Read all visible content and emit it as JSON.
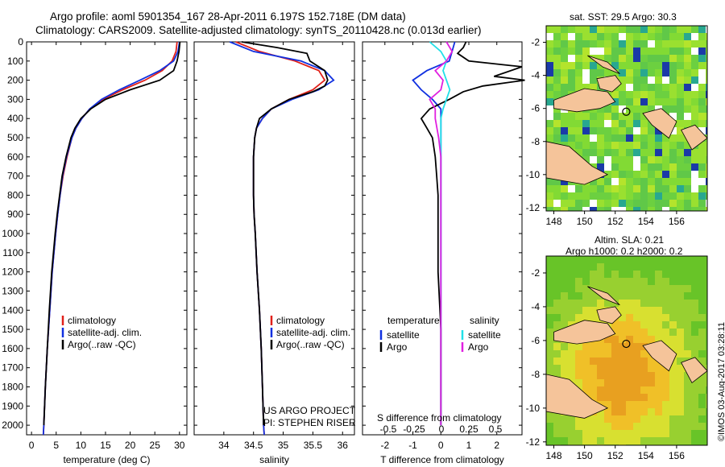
{
  "header": {
    "title_line1": "Argo profile: aoml 5901354_167 28-Apr-2011 6.197S 152.718E (DM data)",
    "title_line2": "Climatology: CARS2009. Satellite-adjusted climatology: synTS_20110428.nc (0.013d earlier)"
  },
  "colors": {
    "climatology": "#e0201a",
    "satellite": "#1030e0",
    "argo": "#000000",
    "sat_salinity": "#20e0e8",
    "argo_salinity": "#e020e0",
    "land": "#f5c49a"
  },
  "chart_data": [
    {
      "type": "line",
      "panel": "temperature",
      "xlabel": "temperature (deg C)",
      "xlim": [
        -1,
        31.5
      ],
      "xticks": [
        0,
        5,
        10,
        15,
        20,
        25,
        30
      ],
      "ylim": [
        0,
        2050
      ],
      "yticks": [
        0,
        100,
        200,
        300,
        400,
        500,
        600,
        700,
        800,
        900,
        1000,
        1100,
        1200,
        1300,
        1400,
        1500,
        1600,
        1700,
        1800,
        1900,
        2000
      ],
      "legend": [
        "climatology",
        "satellite-adj. clim.",
        "Argo(..raw -QC)"
      ],
      "series": [
        {
          "name": "climatology",
          "depth": [
            0,
            50,
            100,
            150,
            200,
            250,
            300,
            350,
            400,
            450,
            500,
            600,
            700,
            800,
            900,
            1000,
            1200,
            1400,
            1600,
            1800,
            2000,
            2050
          ],
          "values": [
            29.5,
            29.3,
            28.5,
            26.5,
            23.0,
            18.5,
            14.5,
            11.8,
            10.2,
            9.0,
            8.2,
            7.2,
            6.4,
            5.8,
            5.3,
            4.9,
            4.2,
            3.7,
            3.2,
            2.8,
            2.5,
            2.4
          ]
        },
        {
          "name": "satellite-adj. clim.",
          "depth": [
            0,
            50,
            100,
            150,
            200,
            250,
            300,
            350,
            400,
            450,
            500,
            600,
            700,
            800,
            900,
            1000,
            1200,
            1400,
            1600,
            1800,
            2000,
            2050
          ],
          "values": [
            30.0,
            29.7,
            28.8,
            26.0,
            22.0,
            17.8,
            14.2,
            11.8,
            10.2,
            9.0,
            8.2,
            7.1,
            6.3,
            5.8,
            5.3,
            4.9,
            4.2,
            3.7,
            3.2,
            2.8,
            2.5,
            2.4
          ]
        },
        {
          "name": "Argo(..raw -QC)",
          "depth": [
            0,
            50,
            100,
            150,
            200,
            250,
            300,
            350,
            400,
            450,
            500,
            600,
            700,
            800,
            900,
            1000,
            1200,
            1400,
            1600,
            1800,
            2000
          ],
          "values": [
            30.1,
            29.9,
            29.5,
            28.8,
            26.0,
            20.0,
            15.0,
            12.0,
            10.0,
            8.8,
            8.0,
            7.0,
            6.2,
            5.7,
            5.2,
            4.8,
            4.1,
            3.6,
            3.2,
            2.8,
            2.5
          ]
        }
      ]
    },
    {
      "type": "line",
      "panel": "salinity",
      "xlabel": "salinity",
      "xlim": [
        33.5,
        36.2
      ],
      "xticks": [
        34,
        34.5,
        35,
        35.5,
        36
      ],
      "ylim": [
        0,
        2050
      ],
      "legend": [
        "climatology",
        "satellite-adj. clim.",
        "Argo(..raw -QC)"
      ],
      "series": [
        {
          "name": "climatology",
          "depth": [
            0,
            50,
            100,
            150,
            200,
            250,
            300,
            350,
            400,
            450,
            500,
            600,
            700,
            800,
            900,
            1000,
            1200,
            1400,
            1600,
            1800,
            2000,
            2050
          ],
          "values": [
            34.2,
            34.6,
            35.2,
            35.6,
            35.7,
            35.5,
            35.1,
            34.8,
            34.65,
            34.55,
            34.52,
            34.5,
            34.5,
            34.5,
            34.51,
            34.53,
            34.56,
            34.6,
            34.63,
            34.65,
            34.67,
            34.68
          ]
        },
        {
          "name": "satellite-adj. clim.",
          "depth": [
            0,
            50,
            100,
            150,
            200,
            250,
            300,
            350,
            400,
            450,
            500,
            600,
            700,
            800,
            900,
            1000,
            1200,
            1400,
            1600,
            1800,
            2000,
            2050
          ],
          "values": [
            34.1,
            34.5,
            35.3,
            35.7,
            35.85,
            35.6,
            35.15,
            34.8,
            34.65,
            34.55,
            34.52,
            34.5,
            34.5,
            34.5,
            34.51,
            34.53,
            34.56,
            34.6,
            34.63,
            34.65,
            34.67,
            34.68
          ]
        },
        {
          "name": "Argo(..raw -QC)",
          "depth": [
            0,
            30,
            60,
            100,
            150,
            200,
            230,
            260,
            300,
            350,
            400,
            450,
            500,
            600,
            700,
            800,
            900,
            1000,
            1200,
            1400,
            1600,
            1800,
            2000
          ],
          "values": [
            34.3,
            34.9,
            35.4,
            35.45,
            35.7,
            35.75,
            35.7,
            35.5,
            35.1,
            34.8,
            34.6,
            34.55,
            34.52,
            34.5,
            34.5,
            34.5,
            34.51,
            34.53,
            34.56,
            34.6,
            34.63,
            34.65,
            34.67
          ]
        }
      ],
      "annotations": [
        "US ARGO PROJECT",
        "PI: STEPHEN RISER"
      ]
    },
    {
      "type": "line",
      "panel": "difference",
      "xlabel": "T difference from climatology",
      "xlabel_top": "S difference from climatology",
      "xlim": [
        -2.8,
        2.9
      ],
      "xticks": [
        -2,
        -1,
        0,
        1,
        2
      ],
      "sticks": [
        "-0.5",
        "-0.25",
        "0",
        "0.25",
        "0.5"
      ],
      "legend_titles": [
        "temperature",
        "salinity"
      ],
      "legend": [
        "satellite",
        "Argo",
        "satellite",
        "Argo"
      ],
      "series": [
        {
          "name": "temperature satellite",
          "depth": [
            0,
            50,
            100,
            150,
            200,
            250,
            300,
            350,
            400,
            500,
            600,
            800,
            1000,
            1500,
            2000
          ],
          "values": [
            0.5,
            0.4,
            0.3,
            -0.5,
            -1.0,
            -0.7,
            -0.3,
            0.0,
            0.0,
            0.0,
            0.0,
            0.0,
            0.0,
            0.0,
            0.0
          ]
        },
        {
          "name": "temperature Argo",
          "depth": [
            0,
            30,
            60,
            100,
            130,
            160,
            180,
            200,
            230,
            260,
            300,
            350,
            400,
            450,
            500,
            600,
            700,
            800,
            1000,
            1200,
            1500,
            1800,
            2000
          ],
          "values": [
            0.9,
            0.8,
            0.6,
            1.0,
            2.9,
            2.3,
            1.9,
            3.0,
            1.5,
            0.8,
            0.3,
            -0.4,
            -0.7,
            -0.5,
            -0.3,
            -0.2,
            -0.15,
            -0.1,
            -0.1,
            -0.1,
            0.0,
            0.0,
            0.0
          ]
        },
        {
          "name": "salinity satellite",
          "depth": [
            0,
            50,
            100,
            150,
            200,
            250,
            300,
            350,
            400,
            500,
            600,
            800,
            1000,
            1500,
            2000
          ],
          "values": [
            -0.1,
            0.0,
            0.05,
            0.02,
            0.05,
            0.08,
            0.05,
            0.02,
            0.0,
            0.0,
            0.0,
            0.0,
            0.0,
            0.0,
            0.0
          ]
        },
        {
          "name": "salinity Argo",
          "depth": [
            0,
            50,
            100,
            150,
            200,
            250,
            300,
            350,
            400,
            500,
            600,
            800,
            1000,
            1500,
            2000
          ],
          "values": [
            0.05,
            0.1,
            0.05,
            -0.05,
            0.02,
            0.0,
            -0.1,
            -0.05,
            -0.05,
            -0.02,
            0.0,
            0.0,
            0.0,
            0.0,
            0.0
          ]
        }
      ]
    },
    {
      "type": "heatmap",
      "panel": "sst-map",
      "title": "sat. SST: 29.5  Argo: 30.3",
      "xticks": [
        148,
        150,
        152,
        154,
        156
      ],
      "yticks": [
        -2,
        -4,
        -6,
        -8,
        -10,
        -12
      ],
      "xlim": [
        147.5,
        158
      ],
      "ylim": [
        -12.2,
        -1
      ]
    },
    {
      "type": "heatmap",
      "panel": "sla-map",
      "title_line1": "Altim. SLA: 0.21",
      "title_line2": "Argo h1000: 0.2  h2000: 0.2",
      "xticks": [
        148,
        150,
        152,
        154,
        156
      ],
      "yticks": [
        -2,
        -4,
        -6,
        -8,
        -10,
        -12
      ],
      "xlim": [
        147.5,
        158
      ],
      "ylim": [
        -12.2,
        -1
      ]
    }
  ],
  "credit": "©IMOS 03-Aug-2017 03:28:11"
}
